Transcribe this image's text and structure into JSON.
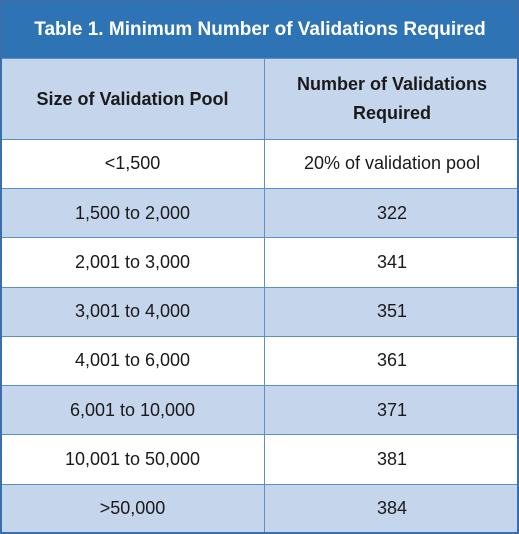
{
  "table": {
    "title": "Table 1. Minimum Number of Validations Required",
    "headers": [
      "Size of Validation Pool",
      "Number of Validations Required"
    ],
    "rows": [
      {
        "pool": "<1,500",
        "validations": "20% of validation pool"
      },
      {
        "pool": "1,500 to 2,000",
        "validations": "322"
      },
      {
        "pool": "2,001 to 3,000",
        "validations": "341"
      },
      {
        "pool": "3,001 to 4,000",
        "validations": "351"
      },
      {
        "pool": "4,001 to 6,000",
        "validations": "361"
      },
      {
        "pool": "6,001 to 10,000",
        "validations": "371"
      },
      {
        "pool": "10,001 to 50,000",
        "validations": "381"
      },
      {
        "pool": ">50,000",
        "validations": "384"
      }
    ]
  },
  "colors": {
    "title_bg": "#2e74b5",
    "header_bg": "#c5d5ec",
    "stripe_bg": "#c5d5ec",
    "border": "#5b8fc7"
  }
}
